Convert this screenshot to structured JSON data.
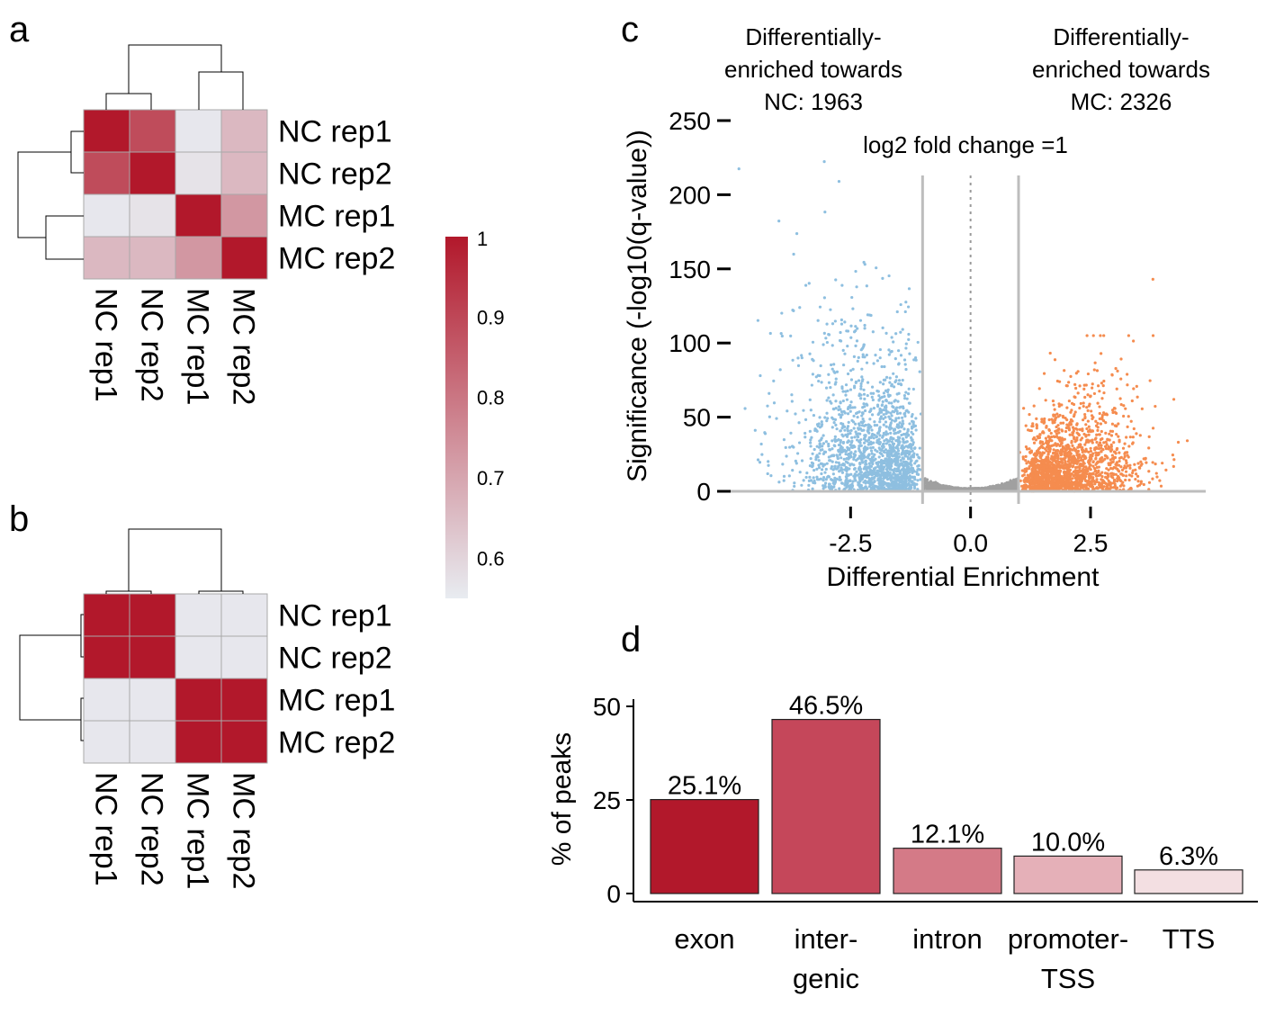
{
  "panels": {
    "a": "a",
    "b": "b",
    "c": "c",
    "d": "d"
  },
  "heatmap_a": {
    "type": "heatmap",
    "rows": [
      "NC rep1",
      "NC rep2",
      "MC rep1",
      "MC rep2"
    ],
    "cols": [
      "NC rep1",
      "NC rep2",
      "MC rep1",
      "MC rep2"
    ],
    "values": [
      [
        1.0,
        0.89,
        0.56,
        0.66
      ],
      [
        0.89,
        1.0,
        0.57,
        0.66
      ],
      [
        0.56,
        0.57,
        1.0,
        0.73
      ],
      [
        0.66,
        0.66,
        0.73,
        1.0
      ]
    ]
  },
  "heatmap_b": {
    "type": "heatmap",
    "rows": [
      "NC rep1",
      "NC rep2",
      "MC rep1",
      "MC rep2"
    ],
    "cols": [
      "NC rep1",
      "NC rep2",
      "MC rep1",
      "MC rep2"
    ],
    "values": [
      [
        1.0,
        1.0,
        0.56,
        0.56
      ],
      [
        1.0,
        1.0,
        0.56,
        0.56
      ],
      [
        0.56,
        0.56,
        1.0,
        1.0
      ],
      [
        0.56,
        0.56,
        1.0,
        1.0
      ]
    ]
  },
  "colorbar": {
    "min": 0.55,
    "max": 1.0,
    "ticks": [
      "1",
      "0.9",
      "0.8",
      "0.7",
      "0.6"
    ],
    "tick_values": [
      1.0,
      0.9,
      0.8,
      0.7,
      0.6
    ],
    "color_low": "#e8ecf1",
    "color_high": "#b2182b"
  },
  "chart_data": [
    {
      "type": "scatter",
      "panel": "c",
      "xlabel": "Differential Enrichment",
      "ylabel": "Significance (-log10(q-value))",
      "xlim": [
        -5,
        4.9
      ],
      "ylim": [
        -5,
        260
      ],
      "x_ticks": [
        "-2.5",
        "0.0",
        "2.5"
      ],
      "x_tick_values": [
        -2.5,
        0.0,
        2.5
      ],
      "y_ticks": [
        "0",
        "50",
        "100",
        "150",
        "200",
        "250"
      ],
      "y_tick_values": [
        0,
        50,
        100,
        150,
        200,
        250
      ],
      "threshold_lines": [
        -1,
        1
      ],
      "annotations": {
        "left": [
          "Differentially-",
          "enriched towards",
          "NC: 1963"
        ],
        "right": [
          "Differentially-",
          "enriched towards",
          "MC: 2326"
        ],
        "fold_change": "log2 fold change =1"
      },
      "series": [
        {
          "name": "enriched towards NC",
          "count": 1963,
          "color": "#8ebfe0"
        },
        {
          "name": "not significant",
          "color": "#a0a0a0"
        },
        {
          "name": "enriched towards MC",
          "count": 2326,
          "color": "#f58c4f"
        }
      ]
    },
    {
      "type": "bar",
      "panel": "d",
      "ylabel": "% of peaks",
      "ylim": [
        0,
        50
      ],
      "y_ticks": [
        "0",
        "25",
        "50"
      ],
      "y_tick_values": [
        0,
        25,
        50
      ],
      "categories": [
        [
          "exon"
        ],
        [
          "inter-",
          "genic"
        ],
        [
          "intron"
        ],
        [
          "promoter-",
          "TSS"
        ],
        [
          "TTS"
        ]
      ],
      "values": [
        25.1,
        46.5,
        12.1,
        10.0,
        6.3
      ],
      "labels": [
        "25.1%",
        "46.5%",
        "12.1%",
        "10.0%",
        "6.3%"
      ],
      "colors": [
        "#b2182b",
        "#c5475a",
        "#d47a87",
        "#e5b0b8",
        "#f3dfe2"
      ]
    }
  ]
}
